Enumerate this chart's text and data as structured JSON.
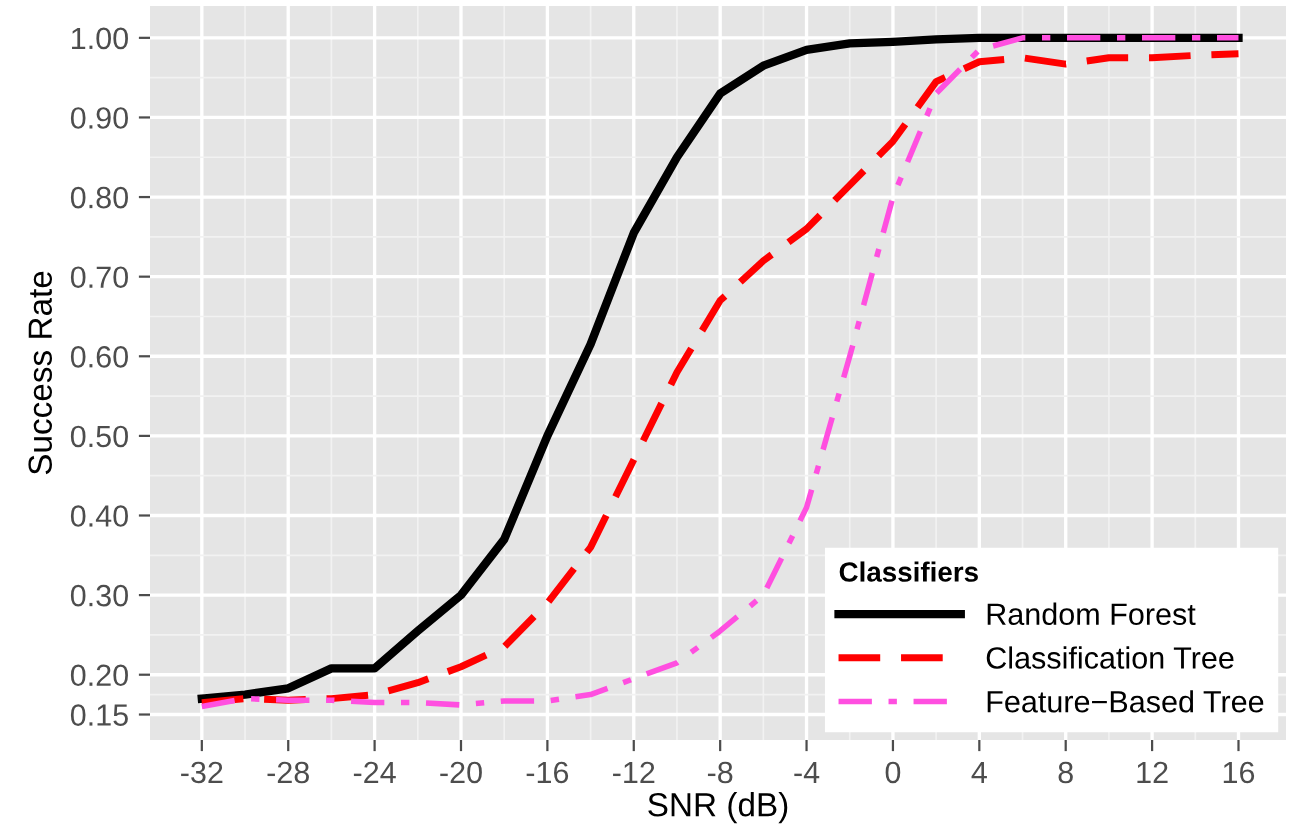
{
  "chart_data": {
    "type": "line",
    "xlabel": "SNR (dB)",
    "ylabel": "Success Rate",
    "legend_title": "Classifiers",
    "legend": "bottom right",
    "grid": true,
    "x": [
      -32,
      -30,
      -28,
      -26,
      -24,
      -22,
      -20,
      -18,
      -16,
      -14,
      -12,
      -10,
      -8,
      -6,
      -4,
      -2,
      0,
      2,
      4,
      6,
      8,
      10,
      12,
      14,
      16
    ],
    "xlim": [
      -34.4,
      18.2
    ],
    "xticks": [
      -32,
      -28,
      -24,
      -20,
      -16,
      -12,
      -8,
      -4,
      0,
      4,
      8,
      12,
      16
    ],
    "ylim": [
      0.118,
      1.04
    ],
    "yticks": [
      {
        "value": 0.15,
        "label": "0.15"
      },
      {
        "value": 0.2,
        "label": "0.20"
      },
      {
        "value": 0.3,
        "label": "0.30"
      },
      {
        "value": 0.4,
        "label": "0.40"
      },
      {
        "value": 0.5,
        "label": "0.50"
      },
      {
        "value": 0.6,
        "label": "0.60"
      },
      {
        "value": 0.7,
        "label": "0.70"
      },
      {
        "value": 0.8,
        "label": "0.80"
      },
      {
        "value": 0.9,
        "label": "0.90"
      },
      {
        "value": 1.0,
        "label": "1.00"
      }
    ],
    "series": [
      {
        "name": "Random Forest",
        "color": "#000000",
        "line_style": "solid",
        "values": [
          0.17,
          0.175,
          0.183,
          0.208,
          0.208,
          0.255,
          0.3,
          0.37,
          0.5,
          0.615,
          0.755,
          0.85,
          0.93,
          0.965,
          0.985,
          0.993,
          0.995,
          0.998,
          1.0,
          1.0,
          1.0,
          1.0,
          1.0,
          1.0,
          1.0
        ]
      },
      {
        "name": "Classification Tree",
        "color": "#ff0000",
        "line_style": "dashed",
        "values": [
          0.165,
          0.17,
          0.168,
          0.17,
          0.175,
          0.19,
          0.21,
          0.235,
          0.29,
          0.36,
          0.47,
          0.58,
          0.67,
          0.72,
          0.76,
          0.815,
          0.87,
          0.945,
          0.97,
          0.975,
          0.967,
          0.975,
          0.975,
          0.978,
          0.98
        ]
      },
      {
        "name": "Feature−Based Tree",
        "color": "#ff4fe0",
        "line_style": "dashdot",
        "values": [
          0.16,
          0.17,
          0.168,
          0.168,
          0.165,
          0.165,
          0.162,
          0.167,
          0.167,
          0.175,
          0.195,
          0.215,
          0.255,
          0.3,
          0.41,
          0.6,
          0.8,
          0.93,
          0.985,
          1.0,
          1.0,
          1.0,
          1.0,
          1.0,
          1.0
        ]
      }
    ]
  }
}
